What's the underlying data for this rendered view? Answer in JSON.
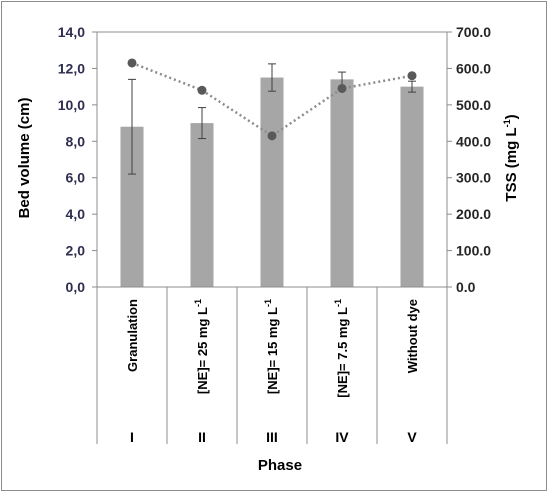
{
  "chart_data": {
    "type": "bar",
    "categories": [
      "Granulation",
      "[NE]= 25 mg L-1",
      "[NE]= 15 mg L-1",
      "[NE]= 7.5 mg L-1",
      "Without dye"
    ],
    "category_labels": [
      {
        "main": "Granulation",
        "sup": ""
      },
      {
        "main": "[NE]= 25 mg L",
        "sup": "-1"
      },
      {
        "main": "[NE]= 15 mg L",
        "sup": "-1"
      },
      {
        "main": "[NE]= 7.5 mg L",
        "sup": "-1"
      },
      {
        "main": "Without dye",
        "sup": ""
      }
    ],
    "phases": [
      "I",
      "II",
      "III",
      "IV",
      "V"
    ],
    "xlabel": "Phase",
    "series": [
      {
        "type": "bar",
        "axis": "left",
        "values": [
          8.8,
          9.0,
          11.5,
          11.4,
          11.0
        ],
        "error": [
          2.6,
          0.85,
          0.75,
          0.4,
          0.3
        ],
        "color": "#a6a6a6"
      },
      {
        "type": "line",
        "axis": "right",
        "style": "dotted",
        "values": [
          615,
          540,
          415,
          545,
          580
        ],
        "color": "#8c8c8c",
        "marker_color": "#595959"
      }
    ],
    "y_left": {
      "label": "Bed volume  (cm)",
      "lim": [
        0,
        14
      ],
      "ticks": [
        "0,0",
        "2,0",
        "4,0",
        "6,0",
        "8,0",
        "10,0",
        "12,0",
        "14,0"
      ]
    },
    "y_right": {
      "label": "TSS (mg L",
      "label_sup": "-1",
      "label_end": ")",
      "lim": [
        0,
        700
      ],
      "ticks": [
        "0.0",
        "100.0",
        "200.0",
        "300.0",
        "400.0",
        "500.0",
        "600.0",
        "700.0"
      ]
    },
    "grid": false,
    "legend": "none"
  }
}
